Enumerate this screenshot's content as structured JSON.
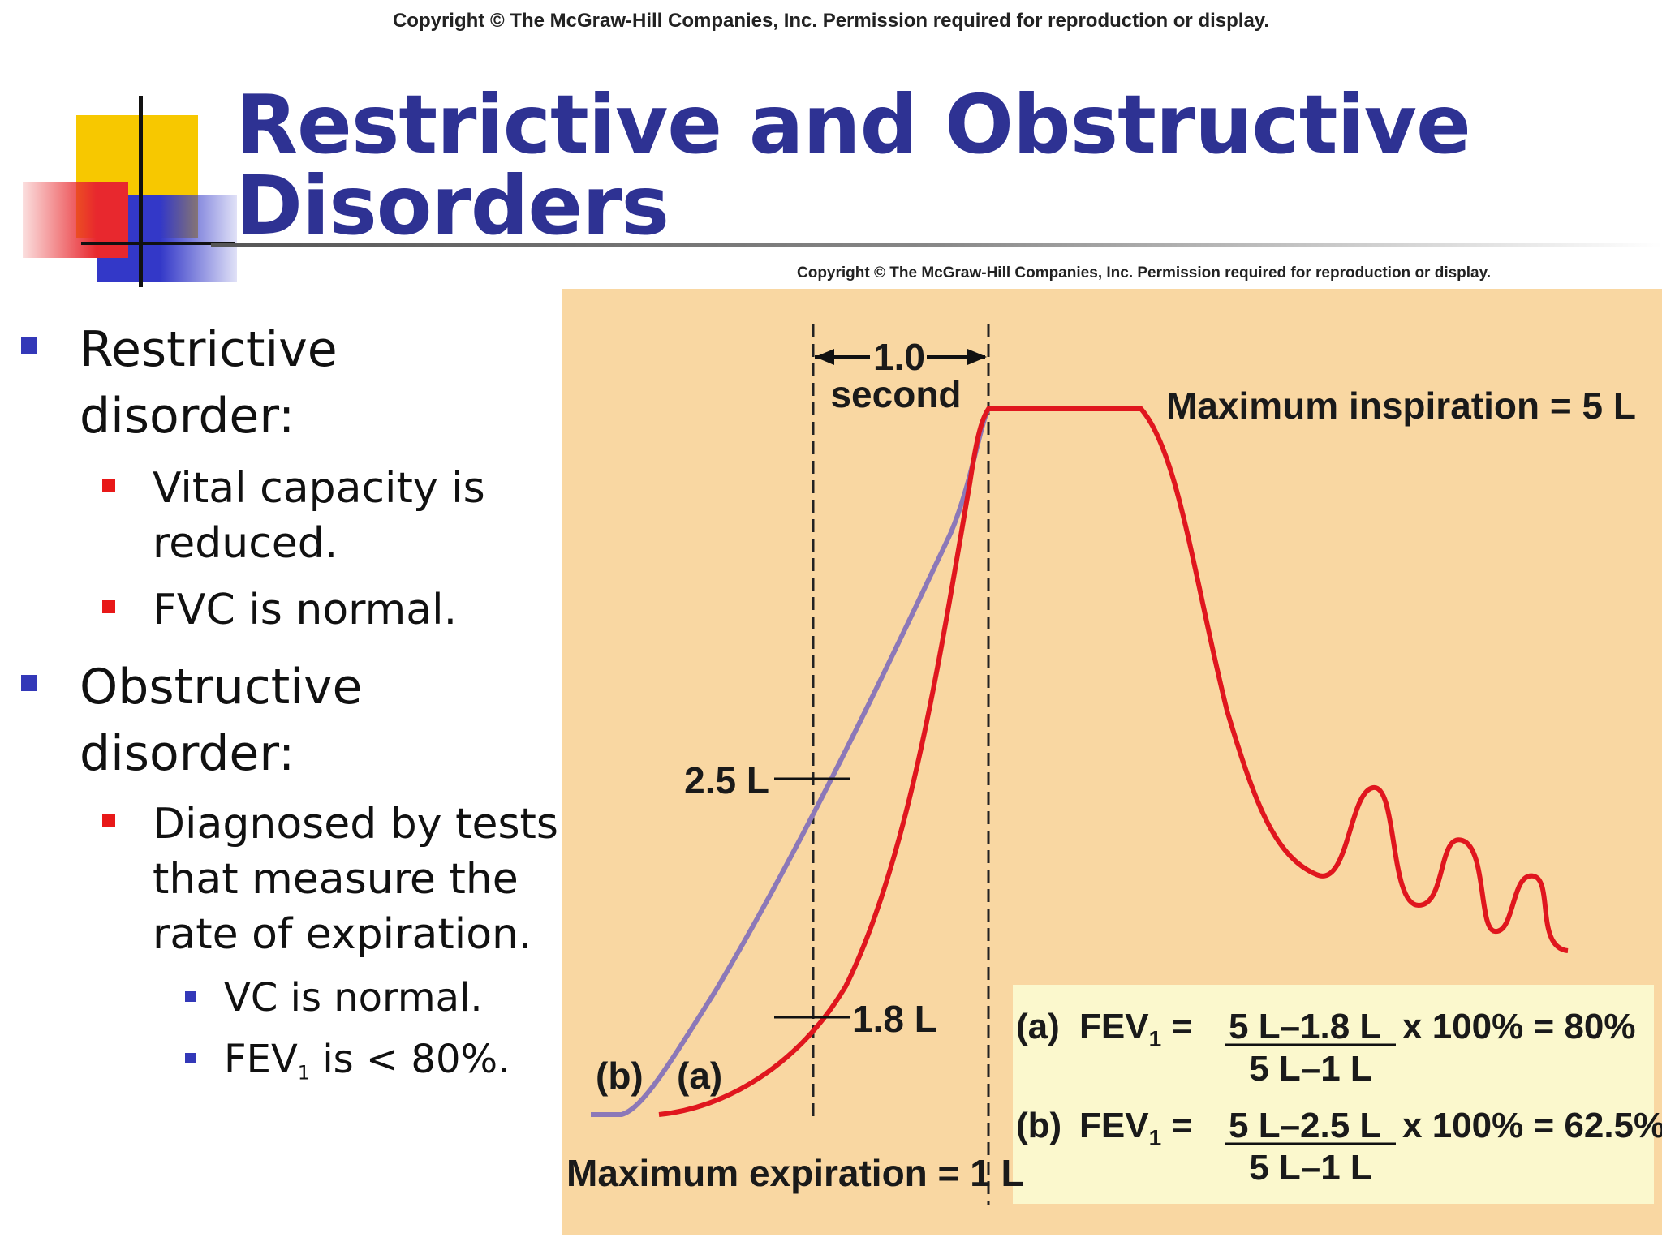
{
  "header": {
    "copyright": "Copyright © The McGraw-Hill Companies, Inc. Permission required for reproduction or display.",
    "title_line1": "Restrictive and Obstructive",
    "title_line2": "Disorders"
  },
  "bullets": {
    "restrictive": {
      "line1": "Restrictive",
      "line2": "disorder:",
      "sub1_line1": "Vital capacity is",
      "sub1_line2": "reduced.",
      "sub2": "FVC is normal."
    },
    "obstructive": {
      "line1": "Obstructive",
      "line2": "disorder:",
      "sub1_line1": "Diagnosed by tests",
      "sub1_line2": "that measure the",
      "sub1_line3": "rate of expiration.",
      "subsub1": "VC is normal.",
      "subsub2_prefix": "FEV",
      "subsub2_sub": "1",
      "subsub2_suffix": " is < 80%."
    }
  },
  "figure": {
    "copyright": "Copyright © The McGraw-Hill Companies, Inc. Permission required for reproduction or display.",
    "interval_value": "1.0",
    "interval_unit": "second",
    "max_inspiration": "Maximum inspiration = 5 L",
    "max_expiration": "Maximum expiration = 1 L",
    "mark_25": "2.5 L",
    "mark_18": "1.8 L",
    "curve_b_label": "(b)",
    "curve_a_label": "(a)",
    "formula_a": {
      "label": "(a)",
      "fev": "FEV",
      "fev_sub": "1",
      "numerator": "5 L–1.8 L",
      "denominator": "5 L–1 L",
      "result": "x 100% = 80%"
    },
    "formula_b": {
      "label": "(b)",
      "fev": "FEV",
      "fev_sub": "1",
      "numerator": "5 L–2.5 L",
      "denominator": "5 L–1 L",
      "result": "x 100% = 62.5%"
    },
    "colors": {
      "background": "#f9d7a2",
      "formula_box": "#fbf8cd",
      "curve_a": "#e0161e",
      "curve_b": "#8c78b8"
    }
  }
}
